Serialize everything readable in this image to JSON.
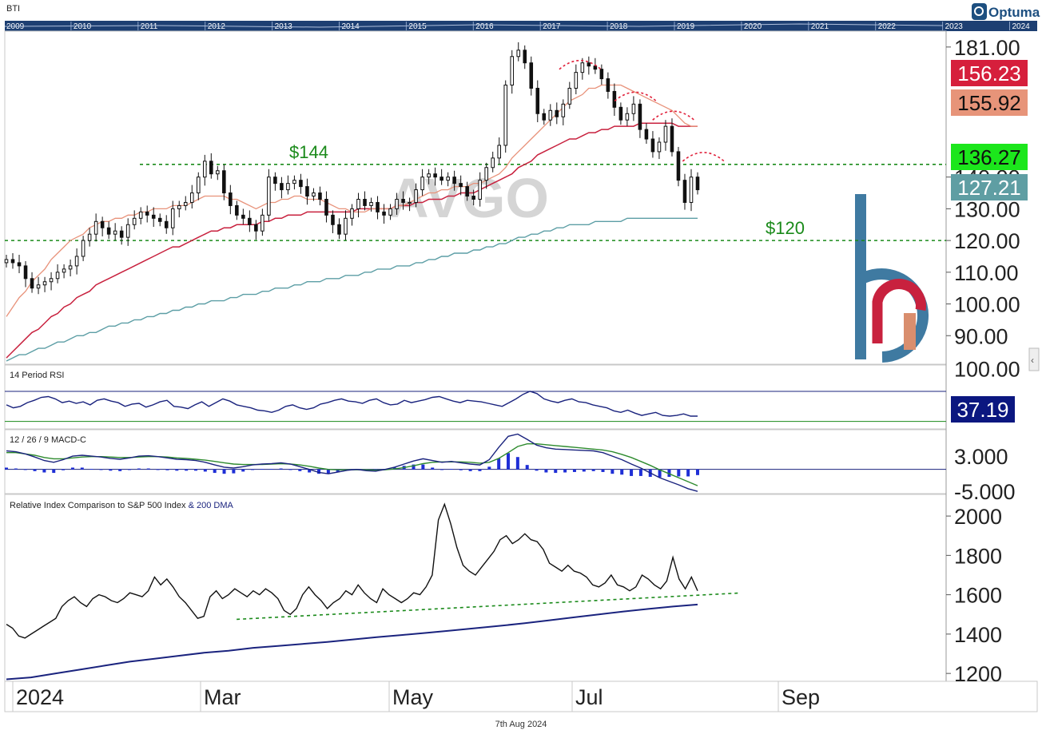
{
  "app": {
    "ticker_code": "BTI",
    "brand": "Optuma",
    "watermark": "AVGO",
    "date_footer": "7th Aug 2024"
  },
  "timeline": {
    "years": [
      "2009",
      "2010",
      "2011",
      "2012",
      "2013",
      "2014",
      "2015",
      "2016",
      "2017",
      "2018",
      "2019",
      "2020",
      "2021",
      "2022",
      "2023",
      "2024"
    ]
  },
  "x_axis": {
    "labels": [
      "2024",
      "Mar",
      "May",
      "Jul",
      "Sep"
    ]
  },
  "colors": {
    "price_ma_fast": "#e8927a",
    "price_ma_mid": "#c8213e",
    "price_ma_slow": "#5c9ea5",
    "support_line": "#1a8a1a",
    "rsi_line": "#1a237e",
    "macd_line": "#1a237e",
    "signal_line": "#2e8b2e",
    "histogram": "#1f2fd6",
    "relative_line": "#111111",
    "dma_line": "#1a237e"
  },
  "chart_data": [
    {
      "type": "candlestick",
      "panel": "price",
      "ylim": [
        81,
        186
      ],
      "yticks": [
        90,
        100,
        110,
        120,
        130,
        140,
        181
      ],
      "ytick_labels": [
        "90.00",
        "100.00",
        "110.00",
        "120.00",
        "130.00",
        "140.00",
        "181.00"
      ],
      "levels": [
        {
          "label": "$144",
          "value": 144
        },
        {
          "label": "$120",
          "value": 120
        }
      ],
      "value_labels": [
        {
          "text": "156.23",
          "color": "#d61f3c",
          "text_color": "#ffffff"
        },
        {
          "text": "155.92",
          "color": "#e79479",
          "text_color": "#111111"
        },
        {
          "text": "136.27",
          "color": "#1ce61c",
          "text_color": "#111111"
        },
        {
          "text": "127.21",
          "color": "#5f9ea3",
          "text_color": "#ffffff"
        }
      ],
      "closes": [
        114,
        113,
        112,
        108,
        105,
        106,
        107,
        108,
        110,
        111,
        112,
        115,
        120,
        122,
        126,
        124,
        122,
        123,
        121,
        125,
        127,
        129,
        128,
        127,
        126,
        124,
        130,
        131,
        132,
        135,
        140,
        145,
        141,
        142,
        135,
        131,
        128,
        127,
        125,
        123,
        128,
        140,
        138,
        136,
        138,
        139,
        137,
        134,
        135,
        133,
        128,
        125,
        122,
        127,
        130,
        133,
        131,
        132,
        129,
        128,
        130,
        133,
        132,
        132,
        136,
        140,
        141,
        140,
        139,
        140,
        138,
        137,
        134,
        133,
        139,
        143,
        146,
        150,
        169,
        178,
        180,
        176,
        168,
        160,
        158,
        161,
        159,
        163,
        168,
        173,
        176,
        175,
        174,
        171,
        167,
        162,
        158,
        160,
        163,
        155,
        152,
        148,
        151,
        156,
        148,
        139,
        132,
        140,
        136
      ],
      "ma_fast": [
        96,
        99,
        102,
        104,
        107,
        109,
        111,
        114,
        116,
        118,
        120,
        121,
        122,
        124,
        125,
        126,
        126,
        127,
        127,
        128,
        128,
        129,
        129,
        130,
        130,
        130,
        131,
        131,
        131,
        132,
        133,
        134,
        134,
        134,
        134,
        133,
        133,
        132,
        131,
        130,
        131,
        132,
        132,
        133,
        133,
        134,
        134,
        133,
        133,
        133,
        132,
        131,
        130,
        130,
        129,
        129,
        129,
        130,
        130,
        130,
        130,
        131,
        131,
        132,
        133,
        134,
        135,
        135,
        136,
        136,
        137,
        137,
        137,
        138,
        138,
        139,
        140,
        141,
        143,
        146,
        148,
        150,
        152,
        154,
        156,
        158,
        160,
        162,
        164,
        165,
        166,
        168,
        168,
        169,
        169,
        169,
        169,
        168,
        167,
        166,
        165,
        164,
        163,
        162,
        161,
        159,
        157,
        156,
        156
      ],
      "ma_mid": [
        83,
        85,
        87,
        89,
        91,
        92,
        94,
        96,
        97,
        99,
        100,
        102,
        103,
        104,
        106,
        107,
        108,
        109,
        110,
        111,
        112,
        113,
        114,
        115,
        116,
        117,
        118,
        118,
        119,
        120,
        121,
        122,
        123,
        123,
        124,
        124,
        125,
        125,
        125,
        125,
        126,
        126,
        127,
        127,
        128,
        128,
        128,
        129,
        129,
        129,
        129,
        129,
        129,
        129,
        129,
        130,
        130,
        130,
        130,
        130,
        130,
        131,
        131,
        131,
        132,
        132,
        133,
        133,
        133,
        134,
        134,
        135,
        135,
        135,
        136,
        137,
        138,
        139,
        140,
        141,
        143,
        144,
        145,
        147,
        148,
        149,
        150,
        151,
        152,
        152,
        153,
        154,
        154,
        155,
        155,
        156,
        156,
        156,
        156,
        157,
        157,
        157,
        157,
        157,
        157,
        156,
        156,
        156,
        156
      ],
      "ma_slow": [
        82,
        83,
        84,
        84,
        85,
        86,
        86,
        87,
        88,
        88,
        89,
        90,
        90,
        91,
        91,
        92,
        93,
        93,
        94,
        94,
        95,
        95,
        96,
        96,
        97,
        97,
        98,
        98,
        99,
        99,
        100,
        100,
        101,
        101,
        101,
        102,
        102,
        103,
        103,
        103,
        104,
        104,
        105,
        105,
        105,
        106,
        106,
        107,
        107,
        107,
        108,
        108,
        108,
        109,
        109,
        109,
        110,
        110,
        111,
        111,
        111,
        112,
        112,
        112,
        113,
        113,
        114,
        114,
        115,
        115,
        116,
        116,
        116,
        117,
        117,
        118,
        118,
        119,
        119,
        120,
        121,
        121,
        122,
        122,
        123,
        123,
        124,
        124,
        125,
        125,
        125,
        125,
        126,
        126,
        126,
        126,
        126,
        127,
        127,
        127,
        127,
        127,
        127,
        127,
        127,
        127,
        127,
        127,
        127
      ]
    },
    {
      "type": "line",
      "panel": "rsi",
      "title": "14 Period RSI",
      "ylim": [
        20,
        105
      ],
      "yticks": [
        100
      ],
      "ytick_labels": [
        "100.00"
      ],
      "bounds": [
        70,
        30
      ],
      "last_value_label": "37.19",
      "values": [
        52,
        48,
        50,
        55,
        58,
        62,
        63,
        60,
        55,
        57,
        54,
        56,
        52,
        58,
        60,
        57,
        55,
        50,
        53,
        54,
        49,
        52,
        56,
        58,
        50,
        49,
        47,
        52,
        56,
        50,
        55,
        60,
        57,
        52,
        50,
        48,
        45,
        44,
        42,
        45,
        50,
        52,
        48,
        46,
        48,
        53,
        55,
        58,
        60,
        57,
        56,
        54,
        58,
        60,
        55,
        52,
        53,
        58,
        55,
        57,
        59,
        62,
        63,
        60,
        57,
        55,
        58,
        57,
        56,
        54,
        52,
        50,
        55,
        60,
        66,
        70,
        67,
        60,
        57,
        55,
        58,
        60,
        56,
        55,
        52,
        50,
        48,
        44,
        42,
        45,
        41,
        38,
        40,
        42,
        38,
        37,
        38,
        40,
        37,
        37
      ]
    },
    {
      "type": "line",
      "panel": "macd",
      "title": "12 / 26 / 9 MACD-C",
      "ylim": [
        -5.5,
        9
      ],
      "yticks": [
        3,
        -5
      ],
      "ytick_labels": [
        "3.000",
        "-5.000"
      ],
      "macd": [
        4.2,
        4.0,
        3.5,
        2.8,
        2.0,
        1.6,
        2.2,
        3.0,
        3.2,
        3.0,
        2.8,
        2.5,
        2.3,
        2.6,
        3.0,
        3.1,
        2.9,
        2.6,
        2.3,
        2.2,
        2.0,
        1.6,
        1.0,
        0.5,
        0.3,
        0.6,
        1.0,
        1.2,
        1.3,
        1.5,
        1.2,
        0.6,
        0.0,
        -0.7,
        -1.0,
        -0.6,
        -0.2,
        0.0,
        -0.3,
        -0.4,
        0.0,
        0.5,
        1.2,
        1.9,
        2.4,
        2.0,
        1.6,
        1.8,
        1.5,
        1.2,
        1.0,
        2.2,
        5.0,
        7.5,
        8.0,
        6.8,
        5.5,
        4.9,
        4.6,
        4.5,
        4.4,
        4.3,
        4.2,
        3.8,
        3.0,
        2.2,
        1.2,
        0.3,
        -0.8,
        -1.9,
        -2.7,
        -3.5,
        -4.4,
        -5.0
      ],
      "signal": [
        3.8,
        3.8,
        3.5,
        3.2,
        2.7,
        2.4,
        2.4,
        2.6,
        2.8,
        2.9,
        2.9,
        2.8,
        2.7,
        2.7,
        2.8,
        2.9,
        2.9,
        2.8,
        2.6,
        2.5,
        2.3,
        2.1,
        1.8,
        1.5,
        1.2,
        1.1,
        1.1,
        1.1,
        1.2,
        1.3,
        1.2,
        1.0,
        0.7,
        0.3,
        0.0,
        -0.1,
        -0.1,
        -0.1,
        -0.1,
        -0.2,
        -0.1,
        0.1,
        0.4,
        0.8,
        1.3,
        1.6,
        1.7,
        1.7,
        1.7,
        1.6,
        1.4,
        1.6,
        2.5,
        3.8,
        5.2,
        5.8,
        5.8,
        5.6,
        5.4,
        5.2,
        5.0,
        4.8,
        4.6,
        4.4,
        4.0,
        3.4,
        2.7,
        1.8,
        0.9,
        -0.1,
        -1.0,
        -1.9,
        -2.8,
        -3.7
      ],
      "histogram": [
        0.4,
        0.2,
        0.0,
        -0.4,
        -0.7,
        -0.8,
        -0.2,
        0.4,
        0.4,
        0.1,
        -0.1,
        -0.3,
        -0.4,
        -0.1,
        0.2,
        0.2,
        0.0,
        -0.2,
        -0.3,
        -0.3,
        -0.3,
        -0.5,
        -0.8,
        -1.0,
        -0.9,
        -0.5,
        -0.1,
        0.1,
        0.1,
        0.2,
        0.0,
        -0.4,
        -0.7,
        -1.0,
        -1.0,
        -0.5,
        -0.1,
        0.1,
        -0.2,
        -0.2,
        0.1,
        0.4,
        0.8,
        1.1,
        1.1,
        0.4,
        -0.1,
        0.1,
        -0.2,
        -0.4,
        -0.4,
        0.6,
        2.5,
        3.7,
        2.8,
        1.0,
        -0.3,
        -0.7,
        -0.8,
        -0.7,
        -0.6,
        -0.5,
        -0.4,
        -0.6,
        -1.0,
        -1.2,
        -1.5,
        -1.5,
        -1.7,
        -1.8,
        -1.7,
        -1.6,
        -1.6,
        -1.3
      ]
    },
    {
      "type": "line",
      "panel": "relative",
      "title": "Relative Index Comparison to S&P 500 Index ",
      "title_extra": "& 200 DMA",
      "ylim": [
        1160,
        2110
      ],
      "yticks": [
        1200,
        1400,
        1600,
        1800,
        2000
      ],
      "ytick_labels": [
        "1200",
        "1400",
        "1600",
        "1800",
        "2000"
      ],
      "values": [
        1450,
        1430,
        1390,
        1380,
        1400,
        1420,
        1440,
        1460,
        1480,
        1540,
        1570,
        1590,
        1560,
        1540,
        1580,
        1600,
        1590,
        1570,
        1560,
        1580,
        1610,
        1600,
        1590,
        1620,
        1690,
        1650,
        1680,
        1640,
        1590,
        1560,
        1520,
        1480,
        1490,
        1590,
        1620,
        1580,
        1600,
        1630,
        1610,
        1590,
        1620,
        1600,
        1630,
        1610,
        1580,
        1520,
        1500,
        1530,
        1600,
        1640,
        1600,
        1570,
        1530,
        1560,
        1580,
        1620,
        1600,
        1650,
        1610,
        1580,
        1560,
        1630,
        1600,
        1580,
        1560,
        1580,
        1610,
        1600,
        1640,
        1700,
        1980,
        2060,
        1960,
        1840,
        1750,
        1720,
        1700,
        1740,
        1780,
        1820,
        1880,
        1900,
        1860,
        1880,
        1910,
        1880,
        1870,
        1830,
        1760,
        1740,
        1720,
        1750,
        1720,
        1710,
        1690,
        1650,
        1640,
        1660,
        1700,
        1650,
        1640,
        1620,
        1640,
        1700,
        1680,
        1650,
        1630,
        1670,
        1790,
        1680,
        1630,
        1690,
        1620
      ],
      "dma": [
        1170,
        1180,
        1200,
        1220,
        1240,
        1260,
        1275,
        1290,
        1305,
        1315,
        1330,
        1340,
        1350,
        1360,
        1372,
        1384,
        1395,
        1406,
        1418,
        1430,
        1442,
        1455,
        1470,
        1485,
        1500,
        1515,
        1528,
        1540,
        1550
      ],
      "trendline_points": [
        [
          0.245,
          1475
        ],
        [
          0.705,
          1590
        ]
      ]
    }
  ]
}
